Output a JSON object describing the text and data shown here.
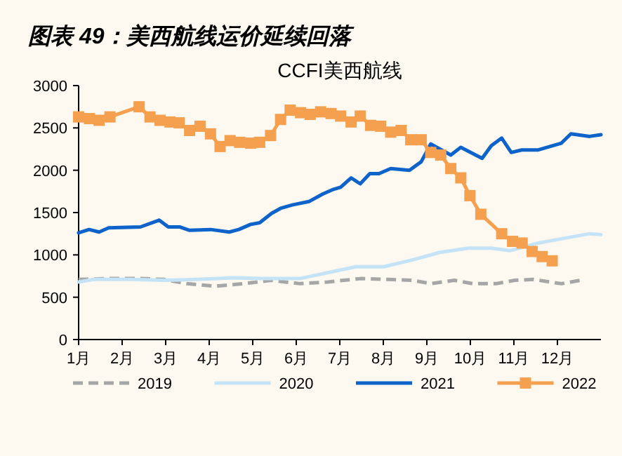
{
  "chart_data": {
    "type": "line",
    "title": "图表 49：美西航线运价延续回落",
    "subtitle": "CCFI美西航线",
    "xlim": [
      1,
      13
    ],
    "xticks": [
      {
        "value": 1,
        "label": "1月"
      },
      {
        "value": 2,
        "label": "2月"
      },
      {
        "value": 3,
        "label": "3月"
      },
      {
        "value": 4,
        "label": "4月"
      },
      {
        "value": 5,
        "label": "5月"
      },
      {
        "value": 6,
        "label": "6月"
      },
      {
        "value": 7,
        "label": "7月"
      },
      {
        "value": 8,
        "label": "8月"
      },
      {
        "value": 9,
        "label": "9月"
      },
      {
        "value": 10,
        "label": "10月"
      },
      {
        "value": 11,
        "label": "11月"
      },
      {
        "value": 12,
        "label": "12月"
      }
    ],
    "ylim": [
      0,
      3000
    ],
    "yticks": [
      0,
      500,
      1000,
      1500,
      2000,
      2500,
      3000
    ],
    "grid": false,
    "legend": "bottom",
    "series": [
      {
        "name": "2019",
        "color": "#a6a6a6",
        "line_style": "dashed",
        "marker": "none",
        "x": [
          1.0,
          1.67,
          2.42,
          2.96,
          3.49,
          4.14,
          4.78,
          5.43,
          6.08,
          6.72,
          7.47,
          8.12,
          8.66,
          9.09,
          9.63,
          10.05,
          10.59,
          11.02,
          11.45,
          12.09,
          12.53
        ],
        "values": [
          710,
          720,
          720,
          710,
          660,
          630,
          660,
          700,
          660,
          680,
          720,
          710,
          700,
          660,
          700,
          660,
          660,
          700,
          710,
          660,
          700
        ]
      },
      {
        "name": "2020",
        "color": "#c5e3f6",
        "line_style": "solid",
        "marker": "none",
        "x": [
          1.0,
          1.34,
          2.2,
          2.96,
          3.71,
          4.57,
          5.22,
          6.08,
          6.72,
          7.37,
          8.01,
          8.66,
          9.3,
          9.95,
          10.48,
          10.91,
          11.56,
          12.09,
          12.74,
          13.0
        ],
        "values": [
          680,
          710,
          710,
          700,
          710,
          730,
          720,
          720,
          790,
          860,
          860,
          940,
          1030,
          1080,
          1080,
          1050,
          1140,
          1190,
          1250,
          1240
        ]
      },
      {
        "name": "2021",
        "color": "#0d63c9",
        "line_style": "solid",
        "marker": "none",
        "x": [
          1.0,
          1.24,
          1.47,
          1.69,
          2.42,
          2.85,
          3.06,
          3.33,
          3.55,
          4.03,
          4.46,
          4.68,
          4.95,
          5.16,
          5.43,
          5.64,
          5.91,
          6.29,
          6.61,
          6.83,
          7.02,
          7.26,
          7.47,
          7.69,
          7.9,
          8.17,
          8.6,
          8.87,
          9.09,
          9.3,
          9.55,
          9.78,
          10.27,
          10.48,
          10.72,
          10.94,
          11.18,
          11.56,
          12.09,
          12.31,
          12.74,
          13.0
        ],
        "values": [
          1260,
          1300,
          1270,
          1320,
          1330,
          1410,
          1330,
          1330,
          1290,
          1300,
          1270,
          1300,
          1360,
          1380,
          1490,
          1550,
          1590,
          1630,
          1720,
          1770,
          1800,
          1910,
          1840,
          1960,
          1960,
          2020,
          2000,
          2100,
          2310,
          2250,
          2180,
          2270,
          2140,
          2290,
          2380,
          2210,
          2240,
          2240,
          2320,
          2430,
          2400,
          2420
        ]
      },
      {
        "name": "2022",
        "color": "#f5a04f",
        "line_style": "solid",
        "marker": "square",
        "x": [
          1.0,
          1.25,
          1.47,
          1.72,
          2.39,
          2.64,
          2.87,
          3.1,
          3.31,
          3.55,
          3.79,
          4.03,
          4.25,
          4.48,
          4.7,
          4.95,
          5.16,
          5.41,
          5.64,
          5.86,
          6.1,
          6.32,
          6.56,
          6.8,
          7.02,
          7.26,
          7.47,
          7.71,
          7.94,
          8.17,
          8.41,
          8.63,
          8.87,
          9.09,
          9.32,
          9.55,
          9.78,
          9.99,
          10.24,
          10.72,
          10.97,
          11.19,
          11.42,
          11.65,
          11.88
        ],
        "values": [
          2630,
          2610,
          2590,
          2630,
          2750,
          2630,
          2590,
          2570,
          2560,
          2470,
          2520,
          2430,
          2280,
          2350,
          2330,
          2320,
          2330,
          2410,
          2600,
          2710,
          2680,
          2660,
          2690,
          2670,
          2640,
          2570,
          2640,
          2530,
          2520,
          2450,
          2470,
          2360,
          2360,
          2210,
          2180,
          2020,
          1910,
          1700,
          1480,
          1250,
          1160,
          1140,
          1040,
          980,
          930
        ]
      }
    ]
  }
}
